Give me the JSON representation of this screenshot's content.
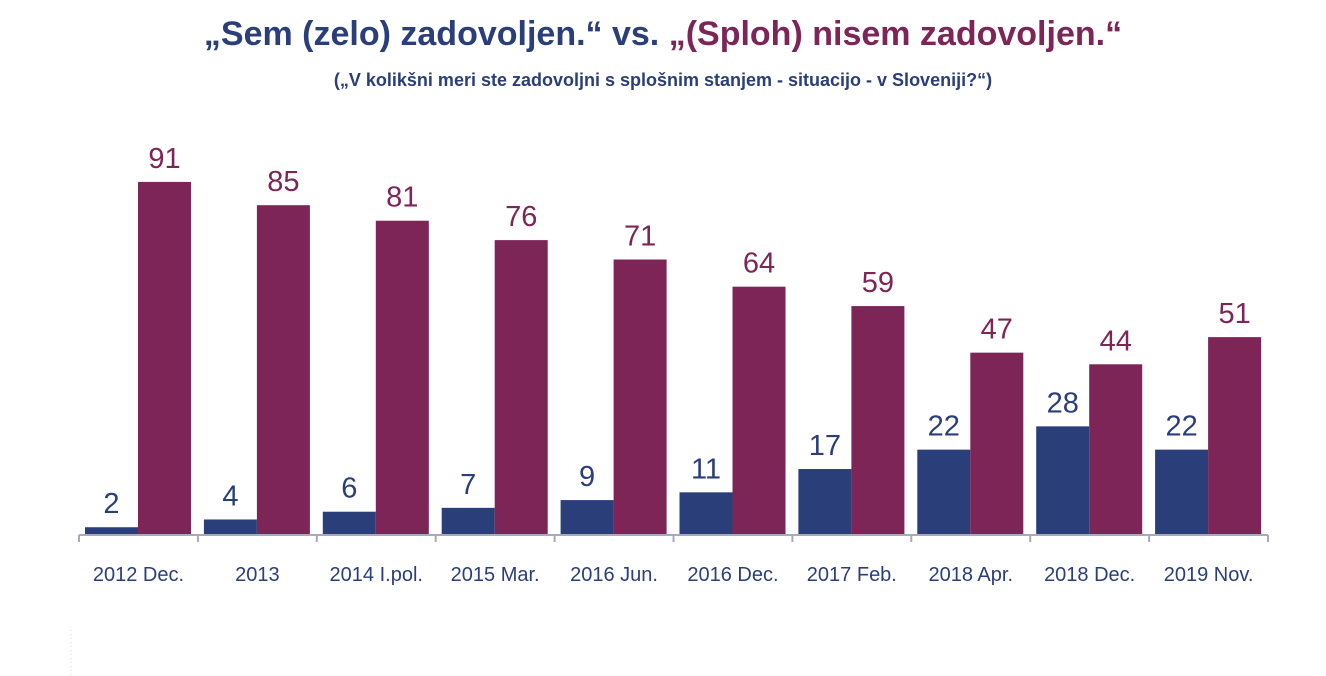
{
  "chart_data": {
    "type": "bar",
    "title_parts": [
      "„Sem (zelo) zadovoljen.“ vs. ",
      "„(Sploh) nisem zadovoljen.“"
    ],
    "subtitle": "(„V kolikšni meri ste zadovoljni s splošnim stanjem  - situacijo - v Sloveniji?“)",
    "categories": [
      "2012 Dec.",
      "2013",
      "2014 I.pol.",
      "2015 Mar.",
      "2016 Jun.",
      "2016 Dec.",
      "2017 Feb.",
      "2018 Apr.",
      "2018 Dec.",
      "2019 Nov."
    ],
    "series": [
      {
        "values": [
          2,
          4,
          6,
          7,
          9,
          11,
          17,
          22,
          28,
          22
        ],
        "color": "#2a3e79"
      },
      {
        "values": [
          91,
          85,
          81,
          76,
          71,
          64,
          59,
          47,
          44,
          51
        ],
        "color": "#7d2556"
      }
    ],
    "ylim": [
      0,
      100
    ],
    "grid": false,
    "legend": "none",
    "data_labels": true
  }
}
